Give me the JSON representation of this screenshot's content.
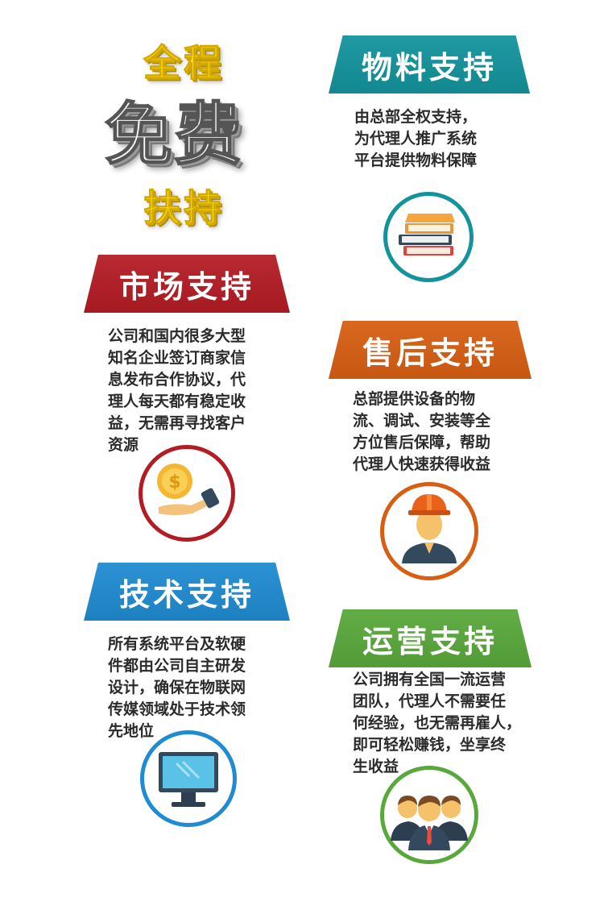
{
  "hero": {
    "top": "全程",
    "middle": "免费",
    "bottom": "扶持"
  },
  "sections": {
    "materials": {
      "title": "物料支持",
      "lines": [
        "由总部全权支持，",
        "为代理人推广系统",
        "平台提供物料保障"
      ],
      "color": "#13939c",
      "icon": "books-icon"
    },
    "market": {
      "title": "市场支持",
      "lines": [
        "公司和国内很多大型",
        "知名企业签订商家信",
        "息发布合作协议，代",
        "理人每天都有稳定收",
        "益，无需再寻找客户",
        "资源"
      ],
      "color": "#b41c24",
      "icon": "coin-hand-icon"
    },
    "aftersales": {
      "title": "售后支持",
      "lines": [
        "总部提供设备的物",
        "流、调试、安装等全",
        "方位售后保障，帮助",
        "代理人快速获得收益"
      ],
      "color": "#d75e12",
      "icon": "engineer-icon"
    },
    "tech": {
      "title": "技术支持",
      "lines": [
        "所有系统平台及软硬",
        "件都由公司自主研发",
        "设计，确保在物联网",
        "传媒领域处于技术领",
        "先地位"
      ],
      "color": "#1f8bd1",
      "icon": "monitor-icon"
    },
    "operations": {
      "title": "运营支持",
      "lines": [
        "公司拥有全国一流运营",
        "团队，代理人不需要任",
        "何经验，也无需再雇人，",
        "即可轻松赚钱，坐享终",
        "生收益"
      ],
      "color": "#59a83b",
      "icon": "team-icon"
    }
  }
}
